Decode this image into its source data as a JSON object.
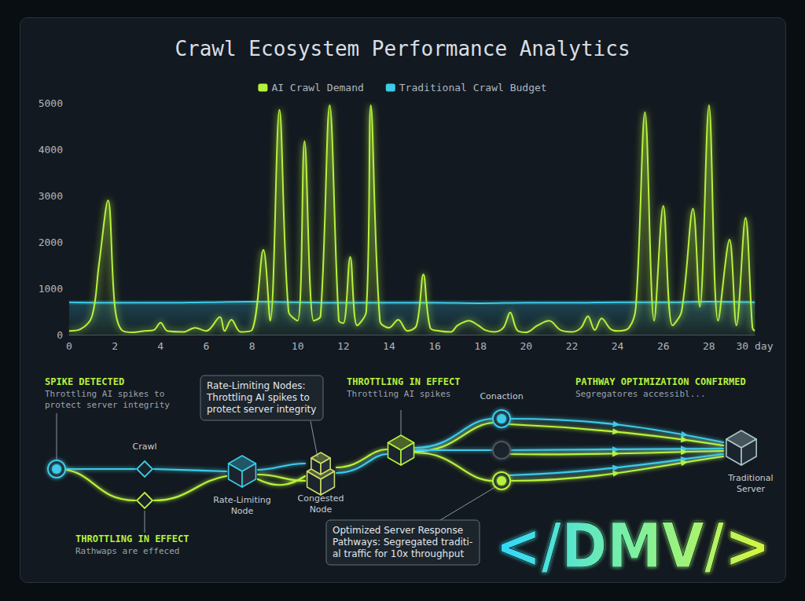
{
  "chart_data": {
    "type": "area",
    "title": "Crawl Ecosystem Performance Analytics",
    "legend": "top",
    "grid": false,
    "xlim": [
      0,
      30
    ],
    "xticks": [
      0,
      2,
      4,
      6,
      8,
      10,
      12,
      14,
      16,
      18,
      20,
      22,
      24,
      26,
      28,
      {
        "value": 30,
        "label": "30 day"
      }
    ],
    "ylim": [
      0,
      5000
    ],
    "yticks": [
      0,
      1000,
      2000,
      3000,
      4000,
      5000
    ],
    "series": [
      {
        "name": "AI Crawl Demand",
        "color": "#b6f23c",
        "x": [
          0,
          0.5,
          1.0,
          1.3,
          1.7,
          2.0,
          2.3,
          2.8,
          3.3,
          3.7,
          4.0,
          4.3,
          5.0,
          5.5,
          6.0,
          6.6,
          6.8,
          7.1,
          7.5,
          8.0,
          8.5,
          8.8,
          9.2,
          9.6,
          10.0,
          10.3,
          10.7,
          11.0,
          11.4,
          11.8,
          12.0,
          12.3,
          12.6,
          13.0,
          13.2,
          13.6,
          14.0,
          14.4,
          14.8,
          15.2,
          15.5,
          15.8,
          16.2,
          16.7,
          17.0,
          17.5,
          17.9,
          18.2,
          18.6,
          19.0,
          19.3,
          19.6,
          20.0,
          20.5,
          21.0,
          21.5,
          22.0,
          22.4,
          22.7,
          23.0,
          23.3,
          23.7,
          24.0,
          24.5,
          24.8,
          25.2,
          25.6,
          26.0,
          26.4,
          26.8,
          27.3,
          27.6,
          28.0,
          28.4,
          28.9,
          29.2,
          29.6,
          29.9,
          30.0
        ],
        "values": [
          80,
          120,
          400,
          1500,
          2900,
          600,
          100,
          50,
          80,
          100,
          260,
          80,
          60,
          150,
          80,
          380,
          80,
          320,
          60,
          100,
          1830,
          300,
          4850,
          500,
          300,
          4180,
          300,
          400,
          4950,
          300,
          250,
          1680,
          200,
          500,
          4950,
          300,
          150,
          320,
          80,
          200,
          1300,
          150,
          80,
          60,
          200,
          300,
          200,
          100,
          60,
          150,
          480,
          100,
          50,
          200,
          300,
          100,
          60,
          150,
          400,
          100,
          350,
          120,
          80,
          150,
          600,
          4800,
          300,
          2780,
          200,
          500,
          2720,
          600,
          4950,
          300,
          2050,
          200,
          2520,
          150,
          80
        ]
      },
      {
        "name": "Traditional Crawl Budget",
        "color": "#3ccbe8",
        "x": [
          0,
          2,
          4,
          6,
          8,
          10,
          12,
          14,
          16,
          18,
          20,
          22,
          24,
          26,
          28,
          30
        ],
        "values": [
          700,
          690,
          690,
          700,
          710,
          700,
          690,
          690,
          690,
          680,
          690,
          690,
          700,
          700,
          710,
          700
        ]
      }
    ]
  },
  "diagram": {
    "annotations": [
      {
        "heading": "SPIKE DETECTED",
        "text": [
          "Throttling AI spikes to",
          "protect server integrity"
        ]
      },
      {
        "heading": "THROTTLING IN EFFECT",
        "text": [
          "Throttling AI spikes"
        ]
      },
      {
        "heading": "PATHWAY OPTIMIZATION CONFIRMED",
        "text": [
          "Segregatores accessibl..."
        ]
      },
      {
        "heading": "THROTTLING IN EFFECT",
        "text": [
          "Rathwaps are effeced"
        ]
      }
    ],
    "callouts": [
      [
        "Rate-Limiting Nodes:",
        "Throttling AI spikes to",
        "protect server integrity"
      ],
      [
        "Optimized Server Response",
        "Pathways: Segregated traditi-",
        "al traffic for 10x throughput"
      ]
    ],
    "node_labels": [
      [
        "Crawl"
      ],
      [
        "Rate-Limiting",
        "Node"
      ],
      [
        "Congested",
        "Node"
      ],
      [
        "Conaction"
      ],
      [
        "Traditional",
        "Server"
      ]
    ],
    "logo": "</DMV/>"
  }
}
